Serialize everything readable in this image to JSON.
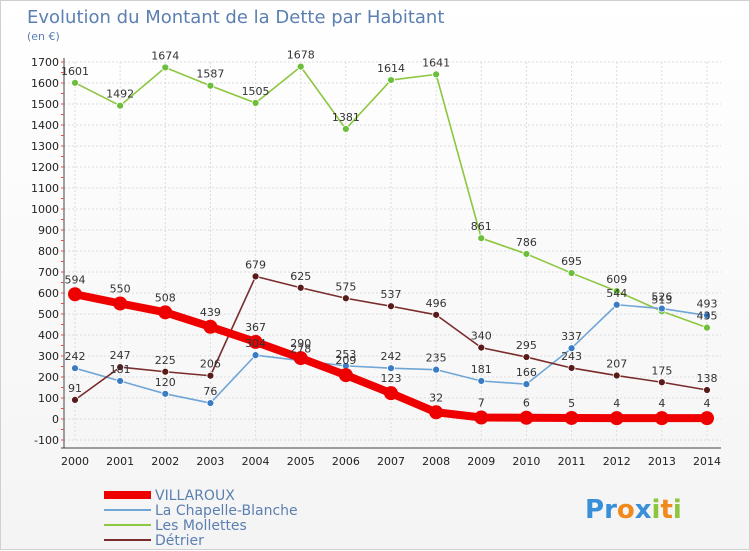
{
  "chart_data": {
    "type": "line",
    "title": "Evolution du Montant de la Dette par Habitant",
    "subtitle": "(en €)",
    "x": [
      "2000",
      "2001",
      "2002",
      "2003",
      "2004",
      "2005",
      "2006",
      "2007",
      "2008",
      "2009",
      "2010",
      "2011",
      "2012",
      "2013",
      "2014"
    ],
    "ylim": [
      -100,
      1700
    ],
    "yticks": [
      -100,
      0,
      100,
      200,
      300,
      400,
      500,
      600,
      700,
      800,
      900,
      1000,
      1100,
      1200,
      1300,
      1400,
      1500,
      1600,
      1700
    ],
    "grid": true,
    "legend_position": "bottom-left",
    "series": [
      {
        "name": "Les Mollettes",
        "color": "#8dc63f",
        "marker": "#6cbf3a",
        "values": [
          1601,
          1492,
          1674,
          1587,
          1505,
          1678,
          1381,
          1614,
          1641,
          861,
          786,
          695,
          609,
          513,
          435
        ]
      },
      {
        "name": "La Chapelle-Blanche",
        "color": "#6fa6d6",
        "marker": "#3a7cc4",
        "values": [
          242,
          181,
          120,
          76,
          304,
          278,
          253,
          242,
          235,
          181,
          166,
          337,
          544,
          526,
          493
        ]
      },
      {
        "name": "Détrier",
        "color": "#7a2c2c",
        "marker": "#5a1a1a",
        "values": [
          91,
          247,
          225,
          206,
          679,
          625,
          575,
          537,
          496,
          340,
          295,
          243,
          207,
          175,
          138
        ]
      },
      {
        "name": "VILLAROUX",
        "color": "#ee0000",
        "marker": "#ee0000",
        "thick": true,
        "values": [
          594,
          550,
          508,
          439,
          367,
          290,
          209,
          123,
          32,
          7,
          6,
          5,
          4,
          4,
          4
        ]
      }
    ]
  },
  "legend": [
    {
      "name": "VILLAROUX",
      "color": "#ee0000",
      "text_color": "#5b7fb0"
    },
    {
      "name": "La Chapelle-Blanche",
      "color": "#6fa6d6",
      "text_color": "#5b7fb0"
    },
    {
      "name": "Les Mollettes",
      "color": "#8dc63f",
      "text_color": "#5b7fb0"
    },
    {
      "name": "Détrier",
      "color": "#7a2c2c",
      "text_color": "#5b7fb0"
    }
  ],
  "logo": {
    "text": "Proxiti",
    "letters": [
      {
        "ch": "P",
        "color": "#3a8fd9"
      },
      {
        "ch": "r",
        "color": "#3a8fd9"
      },
      {
        "ch": "o",
        "color": "#f08a1c"
      },
      {
        "ch": "x",
        "color": "#3a8fd9"
      },
      {
        "ch": "i",
        "color": "#8cc63f"
      },
      {
        "ch": "t",
        "color": "#f08a1c"
      },
      {
        "ch": "i",
        "color": "#8cc63f"
      }
    ]
  }
}
